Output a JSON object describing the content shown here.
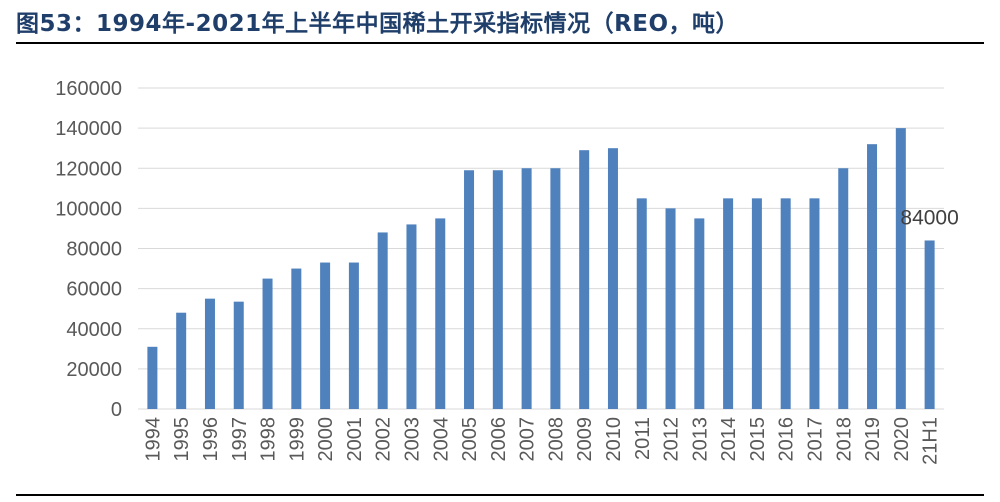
{
  "figure": {
    "title": "图53：1994年-2021年上半年中国稀土开采指标情况（REO，吨）"
  },
  "chart_data": {
    "type": "bar",
    "title": "",
    "xlabel": "",
    "ylabel": "",
    "ylim": [
      0,
      160000
    ],
    "yticks": [
      "0",
      "20000",
      "40000",
      "60000",
      "80000",
      "100000",
      "120000",
      "140000",
      "160000"
    ],
    "grid": true,
    "color": "#4f81bd",
    "categories": [
      "1994",
      "1995",
      "1996",
      "1997",
      "1998",
      "1999",
      "2000",
      "2001",
      "2002",
      "2003",
      "2004",
      "2005",
      "2006",
      "2007",
      "2008",
      "2009",
      "2010",
      "2011",
      "2012",
      "2013",
      "2014",
      "2015",
      "2016",
      "2017",
      "2018",
      "2019",
      "2020",
      "21H1"
    ],
    "values": [
      31000,
      48000,
      55000,
      53500,
      65000,
      70000,
      73000,
      73000,
      88000,
      92000,
      95000,
      119000,
      119000,
      120000,
      120000,
      129000,
      130000,
      105000,
      100000,
      95000,
      105000,
      105000,
      105000,
      105000,
      120000,
      132000,
      140000,
      84000
    ],
    "annotations": [
      {
        "category": "21H1",
        "text": "84000"
      }
    ]
  }
}
